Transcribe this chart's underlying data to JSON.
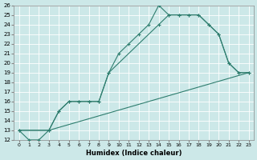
{
  "xlabel": "Humidex (Indice chaleur)",
  "bg_color": "#cce8e8",
  "grid_color": "#ffffff",
  "line_color": "#2e7d6e",
  "xlim": [
    -0.5,
    23.5
  ],
  "ylim": [
    12,
    26
  ],
  "xticks": [
    0,
    1,
    2,
    3,
    4,
    5,
    6,
    7,
    8,
    9,
    10,
    11,
    12,
    13,
    14,
    15,
    16,
    17,
    18,
    19,
    20,
    21,
    22,
    23
  ],
  "yticks": [
    12,
    13,
    14,
    15,
    16,
    17,
    18,
    19,
    20,
    21,
    22,
    23,
    24,
    25,
    26
  ],
  "line1_x": [
    0,
    1,
    2,
    3,
    4,
    5,
    6,
    7,
    8,
    9,
    10,
    11,
    12,
    13,
    14,
    15,
    16,
    17,
    18,
    19,
    20,
    21,
    22,
    23
  ],
  "line1_y": [
    13,
    12,
    12,
    13,
    15,
    16,
    16,
    16,
    16,
    19,
    21,
    22,
    23,
    24,
    26,
    25,
    25,
    25,
    25,
    24,
    23,
    20,
    19,
    19
  ],
  "line2_x": [
    0,
    3,
    4,
    5,
    6,
    7,
    8,
    9,
    14,
    15,
    16,
    17,
    18,
    19,
    20,
    21,
    22,
    23
  ],
  "line2_y": [
    13,
    13,
    15,
    16,
    16,
    16,
    16,
    19,
    24,
    25,
    25,
    25,
    25,
    24,
    23,
    20,
    19,
    19
  ],
  "line3_x": [
    0,
    3,
    23
  ],
  "line3_y": [
    13,
    13,
    19
  ]
}
